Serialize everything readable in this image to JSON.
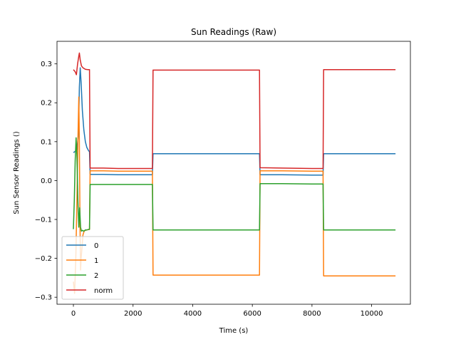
{
  "chart_data": {
    "type": "line",
    "title": "Sun Readings (Raw)",
    "xlabel": "Time (s)",
    "ylabel": "Sun Sensor Readings ()",
    "xlim": [
      -550,
      11300
    ],
    "ylim": [
      -0.318,
      0.358
    ],
    "xticks": [
      0,
      2000,
      4000,
      6000,
      8000,
      10000
    ],
    "yticks": [
      -0.3,
      -0.2,
      -0.1,
      0.0,
      0.1,
      0.2,
      0.3
    ],
    "xtick_labels": [
      "0",
      "2000",
      "4000",
      "6000",
      "8000",
      "10000"
    ],
    "ytick_labels": [
      "−0.3",
      "−0.2",
      "−0.1",
      "0.0",
      "0.1",
      "0.2",
      "0.3"
    ],
    "grid": false,
    "legend_position": "lower-left",
    "series": [
      {
        "name": "0",
        "color": "#1f77b4",
        "x": [
          0,
          60,
          120,
          170,
          200,
          230,
          260,
          300,
          350,
          400,
          450,
          500,
          540,
          560,
          1000,
          1500,
          2000,
          2500,
          2650,
          2670,
          3000,
          4000,
          5000,
          6000,
          6240,
          6260,
          7000,
          8000,
          8370,
          8390,
          9000,
          10000,
          10800
        ],
        "y": [
          0.072,
          0.075,
          0.08,
          0.12,
          0.24,
          0.29,
          0.25,
          0.18,
          0.13,
          0.1,
          0.085,
          0.078,
          0.074,
          0.016,
          0.016,
          0.015,
          0.015,
          0.015,
          0.015,
          0.069,
          0.069,
          0.069,
          0.069,
          0.069,
          0.069,
          0.015,
          0.015,
          0.014,
          0.014,
          0.069,
          0.069,
          0.069,
          0.069
        ]
      },
      {
        "name": "1",
        "color": "#ff7f0e",
        "x": [
          0,
          40,
          80,
          120,
          150,
          180,
          200,
          220,
          240,
          260,
          290,
          320,
          360,
          400,
          450,
          500,
          540,
          560,
          1000,
          1500,
          2000,
          2500,
          2650,
          2670,
          3000,
          4000,
          5000,
          6000,
          6240,
          6260,
          7000,
          8000,
          8370,
          8390,
          9000,
          10000,
          10800
        ],
        "y": [
          -0.26,
          -0.29,
          -0.2,
          -0.05,
          0.1,
          0.215,
          0.1,
          -0.1,
          -0.23,
          -0.2,
          -0.17,
          -0.14,
          -0.13,
          -0.128,
          -0.127,
          -0.126,
          -0.126,
          0.025,
          0.025,
          0.024,
          0.024,
          0.024,
          0.024,
          -0.243,
          -0.243,
          -0.243,
          -0.243,
          -0.243,
          -0.243,
          0.025,
          0.025,
          0.024,
          0.024,
          -0.245,
          -0.245,
          -0.245,
          -0.245
        ]
      },
      {
        "name": "2",
        "color": "#2ca02c",
        "x": [
          0,
          30,
          60,
          90,
          120,
          150,
          180,
          210,
          240,
          270,
          300,
          350,
          400,
          450,
          500,
          540,
          560,
          1000,
          1500,
          2000,
          2500,
          2650,
          2670,
          3000,
          4000,
          5000,
          6000,
          6240,
          6260,
          7000,
          8000,
          8370,
          8390,
          9000,
          10000,
          10800
        ],
        "y": [
          -0.125,
          -0.05,
          0.05,
          0.11,
          0.06,
          -0.05,
          -0.12,
          -0.07,
          -0.12,
          -0.13,
          -0.128,
          -0.13,
          -0.127,
          -0.127,
          -0.126,
          -0.125,
          -0.01,
          -0.01,
          -0.01,
          -0.01,
          -0.01,
          -0.01,
          -0.127,
          -0.127,
          -0.127,
          -0.127,
          -0.127,
          -0.127,
          -0.008,
          -0.008,
          -0.009,
          -0.009,
          -0.127,
          -0.127,
          -0.127,
          -0.127
        ]
      },
      {
        "name": "norm",
        "color": "#d62728",
        "x": [
          0,
          60,
          100,
          140,
          180,
          200,
          230,
          270,
          320,
          400,
          480,
          540,
          560,
          1000,
          1500,
          2000,
          2500,
          2650,
          2670,
          3000,
          4000,
          5000,
          6000,
          6240,
          6260,
          7000,
          8000,
          8370,
          8390,
          9000,
          10000,
          10800
        ],
        "y": [
          0.285,
          0.28,
          0.272,
          0.3,
          0.32,
          0.328,
          0.31,
          0.295,
          0.29,
          0.286,
          0.285,
          0.285,
          0.032,
          0.032,
          0.031,
          0.031,
          0.031,
          0.031,
          0.284,
          0.284,
          0.284,
          0.284,
          0.284,
          0.284,
          0.033,
          0.032,
          0.031,
          0.031,
          0.285,
          0.285,
          0.285,
          0.285
        ]
      }
    ]
  }
}
